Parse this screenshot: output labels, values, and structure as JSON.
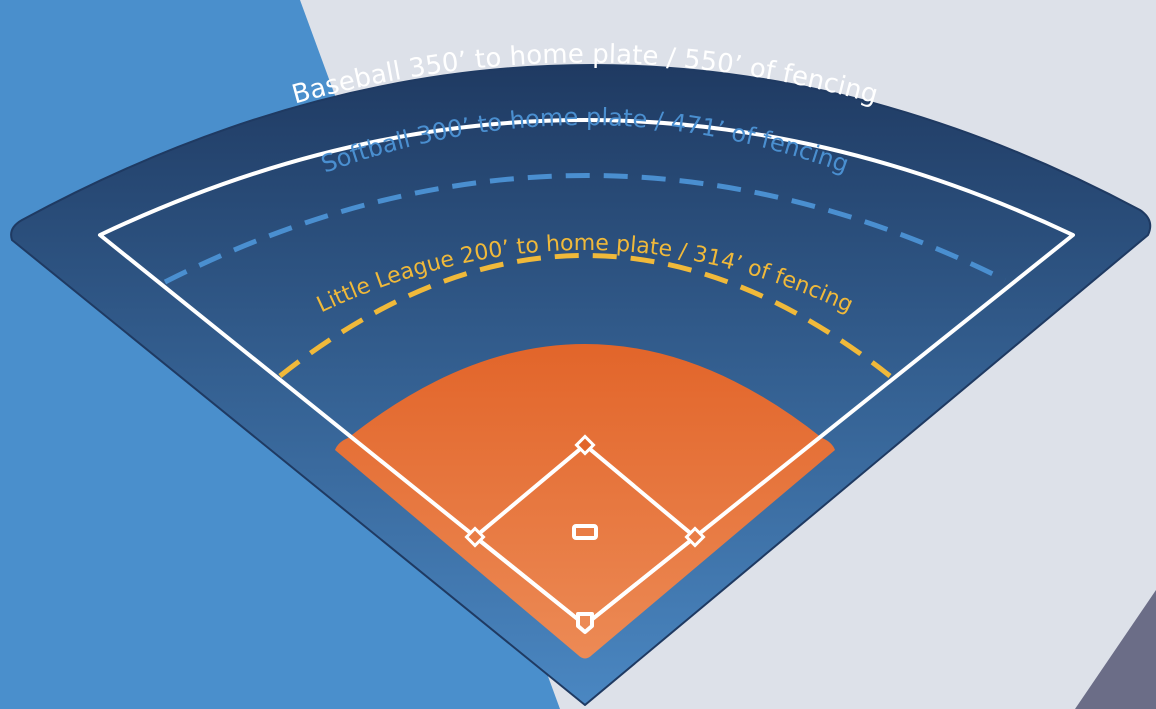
{
  "labels": {
    "baseball": "Baseball 350’ to home plate / 550’ of fencing",
    "softball": "Softball 300’ to home plate / 471’ of fencing",
    "little_league": "Little League 200’ to home plate / 314’ of fencing"
  }
}
